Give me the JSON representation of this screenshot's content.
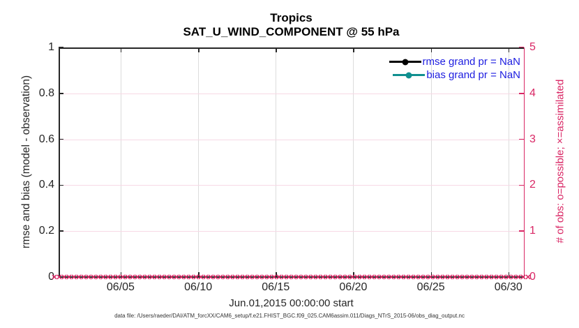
{
  "colors": {
    "pink": "#d92664",
    "teal": "#109090",
    "legend_text_blue": "#1d1de0",
    "axis_black": "#262626",
    "grid_gray": "#dcdcdc",
    "grid_pink": "#f7d9e5"
  },
  "chart": {
    "title_line1": "Tropics",
    "title_line2": "SAT_U_WIND_COMPONENT @ 55 hPa",
    "left_axis": {
      "label": "rmse and bias (model - observation)",
      "ticks": [
        "0",
        "0.2",
        "0.4",
        "0.6",
        "0.8",
        "1"
      ]
    },
    "right_axis": {
      "label": "# of obs: o=possible; ×=assimilated",
      "ticks": [
        "0",
        "1",
        "2",
        "3",
        "4",
        "5"
      ]
    },
    "x_axis": {
      "label": "Jun.01,2015 00:00:00 start",
      "ticks": [
        {
          "day": 5,
          "label": "06/05"
        },
        {
          "day": 10,
          "label": "06/10"
        },
        {
          "day": 15,
          "label": "06/15"
        },
        {
          "day": 20,
          "label": "06/20"
        },
        {
          "day": 25,
          "label": "06/25"
        },
        {
          "day": 30,
          "label": "06/30"
        }
      ]
    },
    "legend": [
      {
        "label": "rmse grand pr = NaN",
        "color": "#000000"
      },
      {
        "label": "bias grand pr = NaN",
        "color": "#109090"
      }
    ],
    "footer": "data file: /Users/raeder/DAI/ATM_forcXX/CAM6_setup/f.e21.FHIST_BGC.f09_025.CAM6assim.011/Diags_NTrS_2015-06/obs_diag_output.nc"
  },
  "chart_data": {
    "type": "line",
    "title": "Tropics",
    "subtitle": "SAT_U_WIND_COMPONENT @ 55 hPa",
    "xlabel": "Jun.01,2015 00:00:00 start",
    "x_tick_labels": [
      "06/05",
      "06/10",
      "06/15",
      "06/20",
      "06/25",
      "06/30"
    ],
    "x_range_days": [
      "2015-06-01",
      "2015-07-01"
    ],
    "left_ylabel": "rmse and bias (model - observation)",
    "left_ylim": [
      0,
      1
    ],
    "left_yticks": [
      0,
      0.2,
      0.4,
      0.6,
      0.8,
      1
    ],
    "right_ylabel": "# of obs: o=possible; ×=assimilated",
    "right_ylim": [
      0,
      5
    ],
    "right_yticks": [
      0,
      1,
      2,
      3,
      4,
      5
    ],
    "grid": true,
    "legend_position": "top-right",
    "series": [
      {
        "name": "rmse grand pr = NaN",
        "axis": "left",
        "color": "#000000",
        "marker": "filled-circle",
        "values": "NaN (nothing plotted)"
      },
      {
        "name": "bias grand pr = NaN",
        "axis": "left",
        "color": "#109090",
        "marker": "filled-circle",
        "values": "NaN (nothing plotted)"
      },
      {
        "name": "# of obs possible (o)",
        "axis": "right",
        "color": "#d92664",
        "marker": "o",
        "values": "0 at every observation time, Jun 01 through Jun 30 2015"
      },
      {
        "name": "# of obs assimilated (×)",
        "axis": "right",
        "color": "#d92664",
        "marker": "x",
        "values": "0 at every observation time, Jun 01 through Jun 30 2015"
      }
    ]
  }
}
